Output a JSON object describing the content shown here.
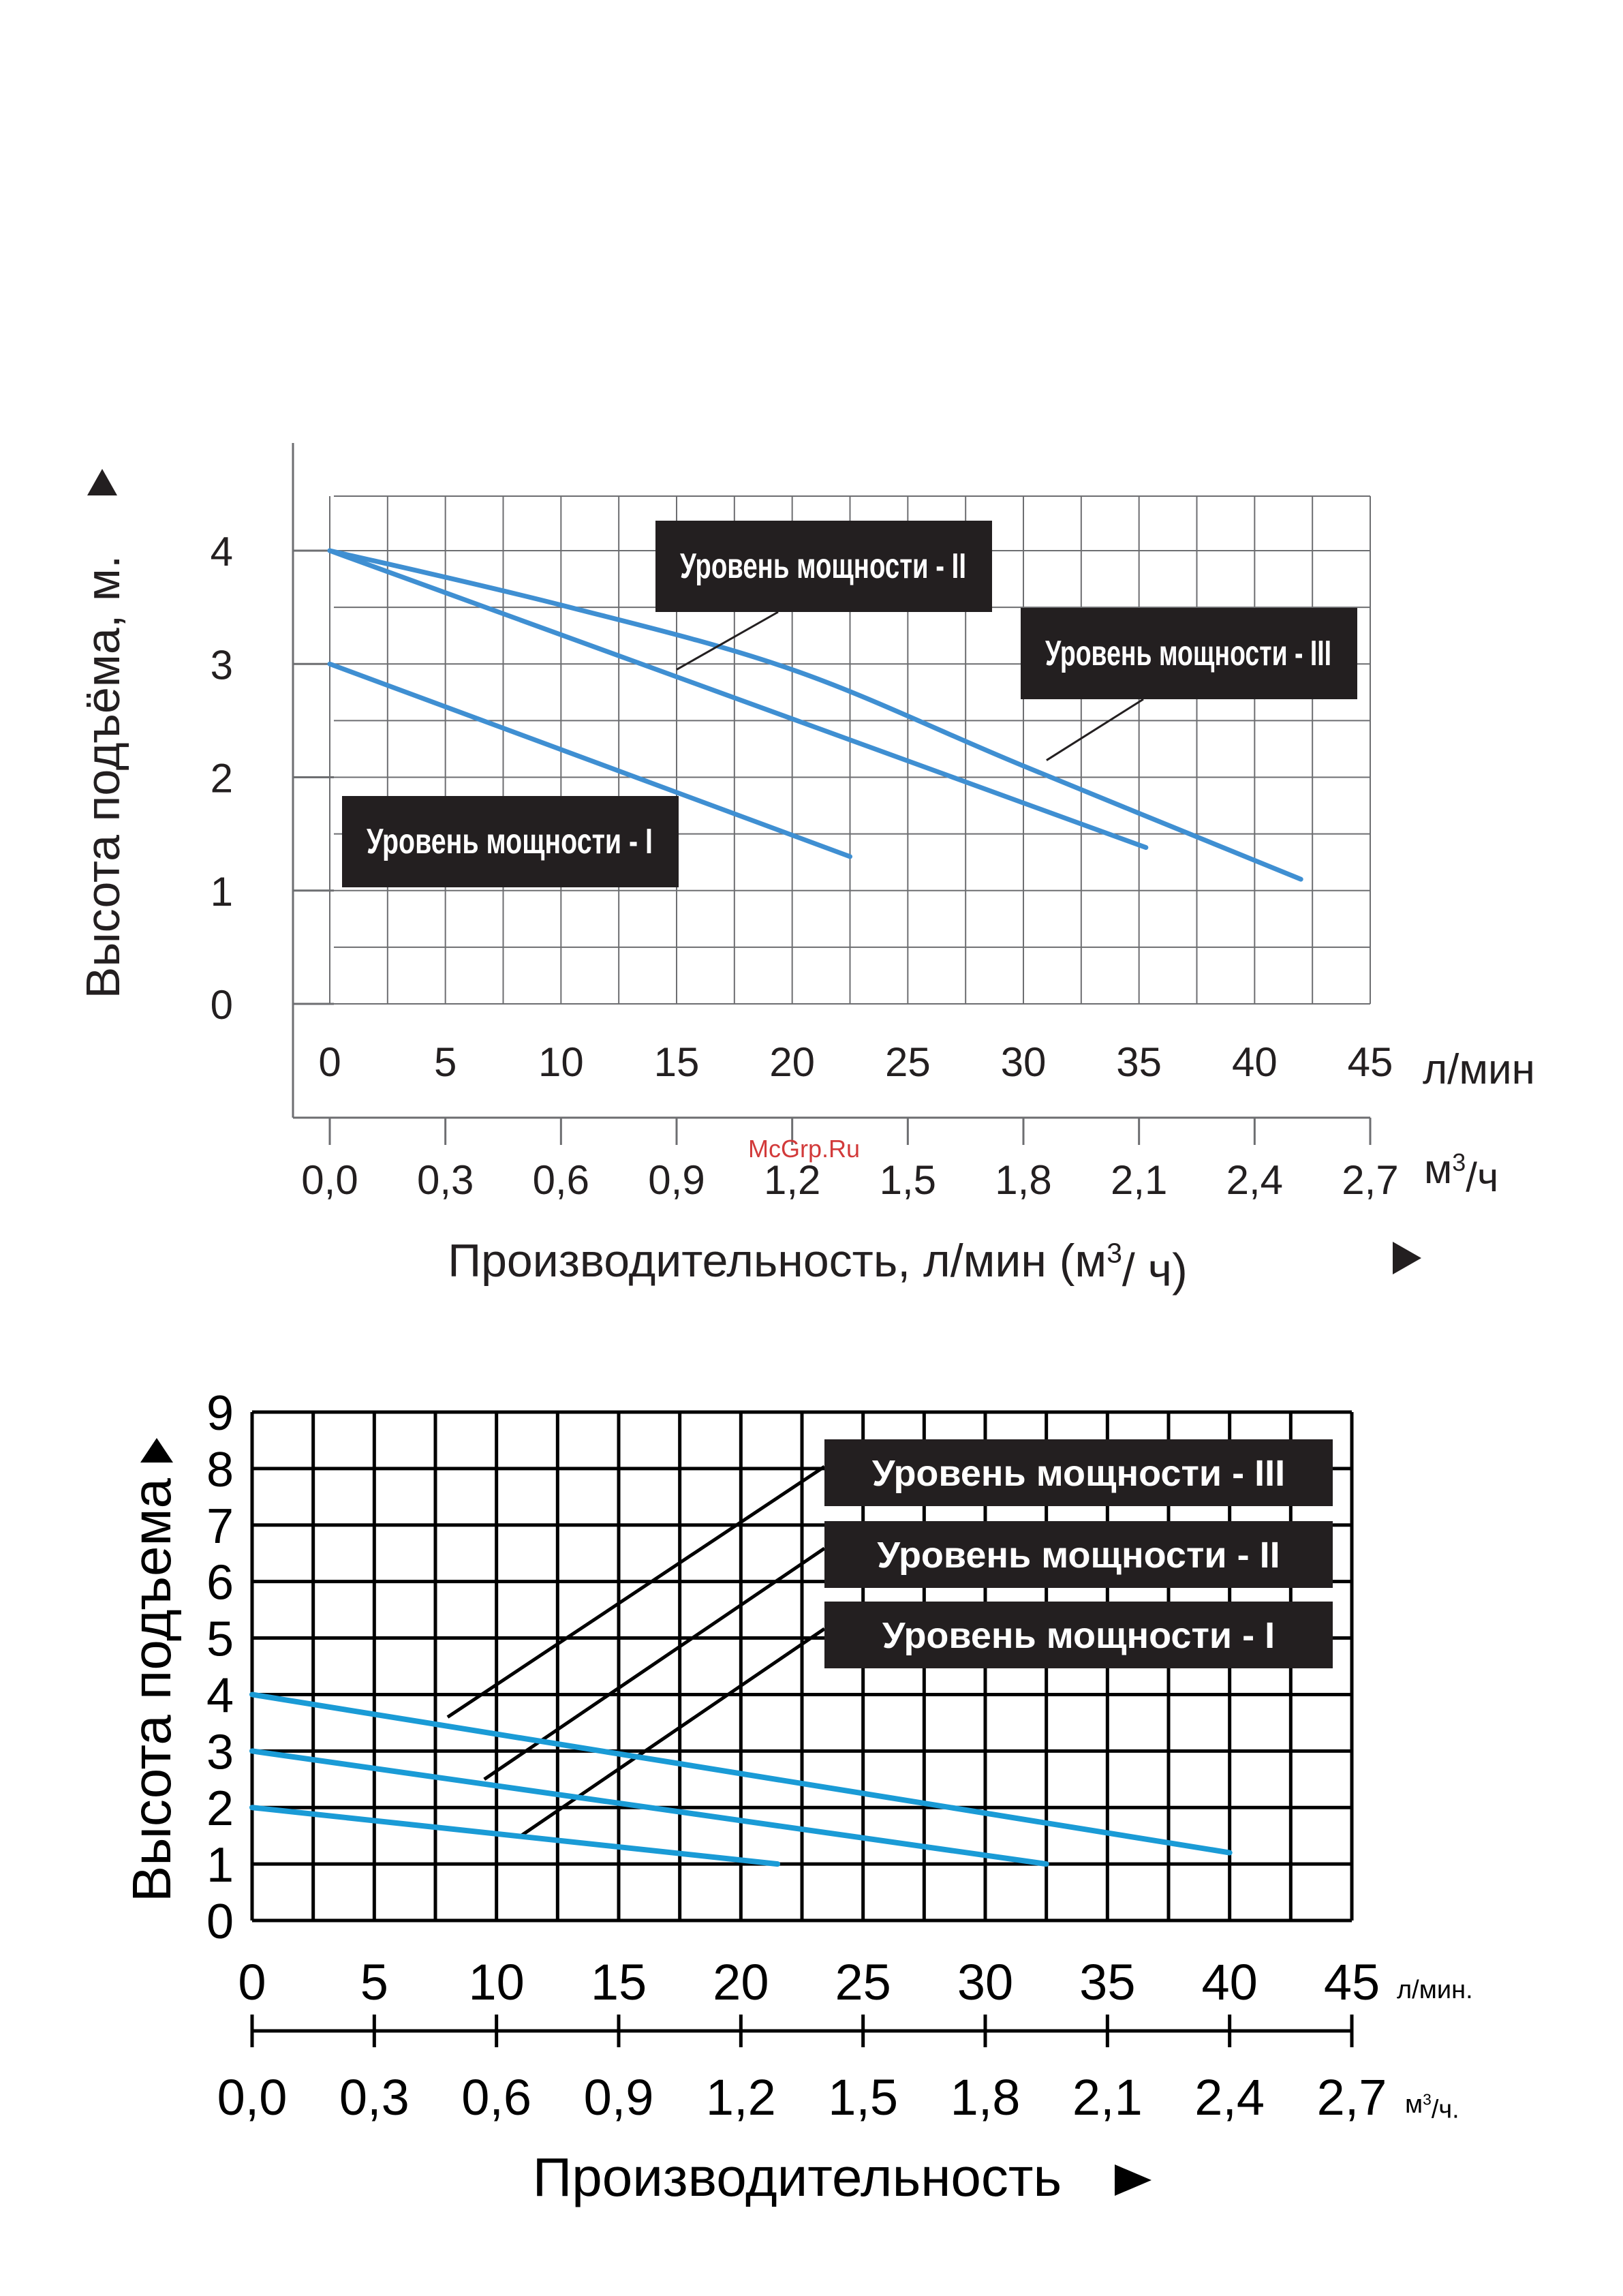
{
  "watermark": "McGrp.Ru",
  "chart_data": [
    {
      "type": "line",
      "title": "",
      "ylabel": "Высота подъёма, м.",
      "xlabel": "Производительность, л/мин (м³/ ч)",
      "x_unit_primary": "л/мин",
      "x_unit_secondary": "м³/ч",
      "ylim": [
        0,
        4
      ],
      "xlim": [
        0,
        45
      ],
      "y_ticks": [
        "0",
        "1",
        "2",
        "3",
        "4"
      ],
      "x_ticks_primary": [
        "0",
        "5",
        "10",
        "15",
        "20",
        "25",
        "30",
        "35",
        "40",
        "45"
      ],
      "x_ticks_secondary": [
        "0,0",
        "0,3",
        "0,6",
        "0,9",
        "1,2",
        "1,5",
        "1,8",
        "2,1",
        "2,4",
        "2,7"
      ],
      "grid": true,
      "line_color": "#3f8fd2",
      "series": [
        {
          "name": "Уровень мощности - I",
          "x": [
            0,
            22.5
          ],
          "y": [
            3.0,
            1.3
          ]
        },
        {
          "name": "Уровень мощности - II",
          "x": [
            0,
            35.3
          ],
          "y": [
            4.0,
            1.38
          ]
        },
        {
          "name": "Уровень мощности - III",
          "x": [
            0,
            10,
            20,
            30,
            42
          ],
          "y": [
            4.0,
            3.52,
            2.95,
            2.1,
            1.1
          ]
        }
      ],
      "labels": [
        {
          "text": "Уровень мощности - II",
          "points_to": [
            15,
            2.95
          ]
        },
        {
          "text": "Уровень мощности - III",
          "points_to": [
            31,
            2.15
          ]
        },
        {
          "text": "Уровень мощности - I",
          "points_to": null
        }
      ]
    },
    {
      "type": "line",
      "title": "",
      "ylabel": "Высота подъема",
      "xlabel": "Производительность",
      "x_unit_primary": "л/мин.",
      "x_unit_secondary": "м³/ч.",
      "ylim": [
        0,
        9
      ],
      "xlim": [
        0,
        45
      ],
      "y_ticks": [
        "0",
        "1",
        "2",
        "3",
        "4",
        "5",
        "6",
        "7",
        "8",
        "9"
      ],
      "x_ticks_primary": [
        "0",
        "5",
        "10",
        "15",
        "20",
        "25",
        "30",
        "35",
        "40",
        "45"
      ],
      "x_ticks_secondary": [
        "0,0",
        "0,3",
        "0,6",
        "0,9",
        "1,2",
        "1,5",
        "1,8",
        "2,1",
        "2,4",
        "2,7"
      ],
      "grid": true,
      "line_color": "#1a9bd6",
      "series": [
        {
          "name": "Уровень мощности - I",
          "x": [
            0,
            21.5
          ],
          "y": [
            2.0,
            1.0
          ]
        },
        {
          "name": "Уровень мощности - II",
          "x": [
            0,
            32.5
          ],
          "y": [
            3.0,
            1.0
          ]
        },
        {
          "name": "Уровень мощности - III",
          "x": [
            0,
            40
          ],
          "y": [
            4.0,
            1.2
          ]
        }
      ],
      "labels": [
        {
          "text": "Уровень мощности - III",
          "points_to": [
            8,
            3.6
          ]
        },
        {
          "text": "Уровень мощности - II",
          "points_to": [
            9.5,
            2.5
          ]
        },
        {
          "text": "Уровень мощности - I",
          "points_to": [
            11,
            1.5
          ]
        }
      ]
    }
  ]
}
